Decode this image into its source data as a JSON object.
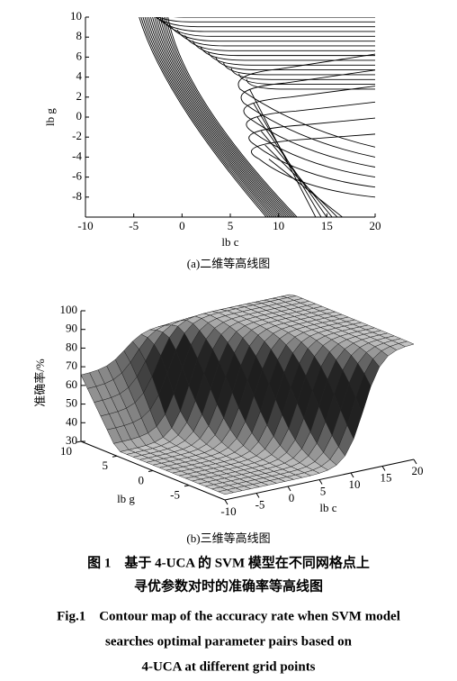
{
  "figures": [
    {
      "type": "contour",
      "xlabel": "lb c",
      "ylabel": "lb g",
      "caption": "(a)二维等高线图",
      "xlim": [
        -10,
        20
      ],
      "xticks": [
        -10,
        -5,
        0,
        5,
        10,
        15,
        20
      ],
      "ylim": [
        -10,
        10
      ],
      "yticks": [
        -8,
        -6,
        -4,
        -2,
        0,
        2,
        4,
        6,
        8,
        10
      ]
    },
    {
      "type": "surface3d",
      "zlabel": "准确率/%",
      "glabel": "lb g",
      "clabel": "lb c",
      "caption": "(b)三维等高线图",
      "zlim": [
        30,
        100
      ],
      "zticks": [
        30,
        40,
        50,
        60,
        70,
        80,
        90,
        100
      ],
      "glim": [
        -10,
        10
      ],
      "gticks": [
        10,
        5,
        0,
        -5
      ],
      "clim": [
        -10,
        20
      ],
      "cticks": [
        -10,
        -5,
        0,
        5,
        10,
        15,
        20
      ]
    }
  ],
  "caption": {
    "zh": [
      "图 1　基于 4-UCA 的 SVM 模型在不同网格点上",
      "寻优参数对时的准确率等高线图"
    ],
    "en": [
      "Fig.1　Contour map of the accuracy rate when SVM model",
      "searches optimal parameter pairs based on",
      "4-UCA at different grid points"
    ]
  }
}
